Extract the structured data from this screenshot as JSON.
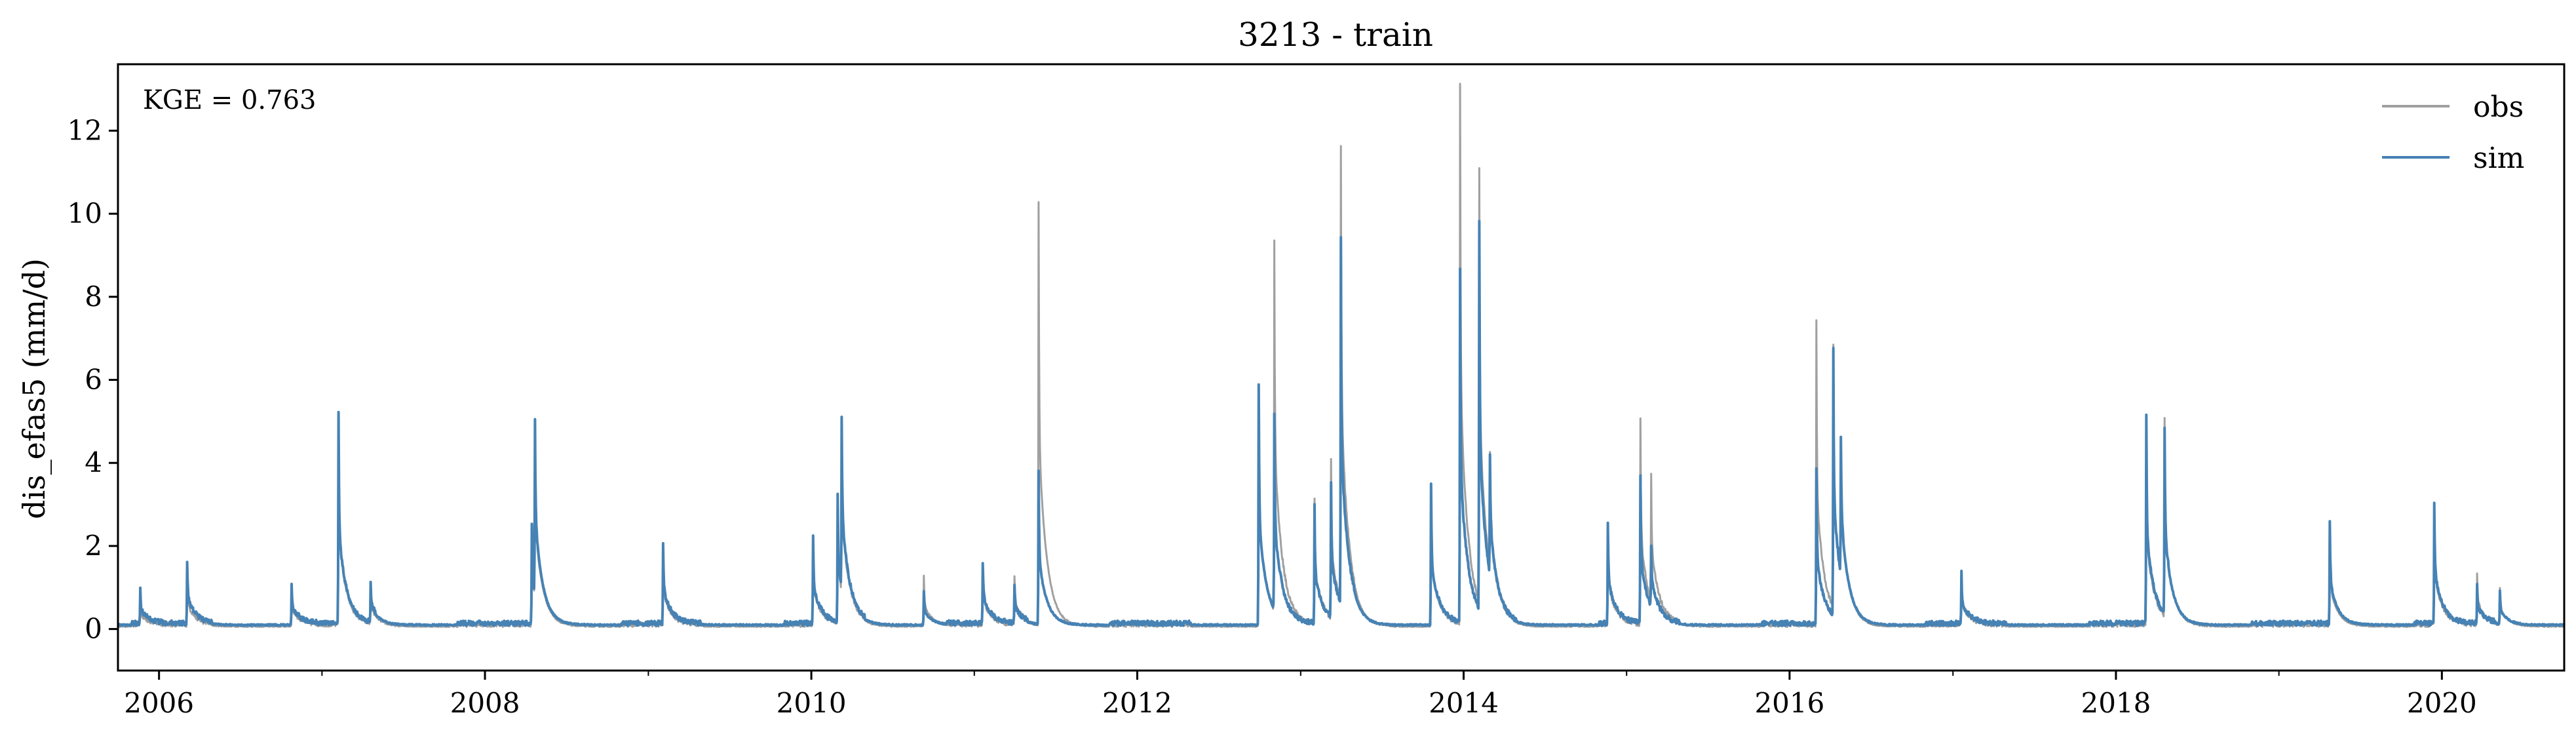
{
  "chart_data": {
    "type": "line",
    "title": "3213 - train",
    "xlabel": "",
    "ylabel": "dis_efas5 (mm/d)",
    "annotation": "KGE = 0.763",
    "xlim": [
      "2005-10-01",
      "2020-10-01"
    ],
    "ylim": [
      -1,
      13.6
    ],
    "x_ticks": [
      "2006",
      "2008",
      "2010",
      "2012",
      "2014",
      "2016",
      "2018",
      "2020"
    ],
    "y_ticks": [
      "0",
      "2",
      "4",
      "6",
      "8",
      "10",
      "12"
    ],
    "legend_position": "top-right",
    "grid": false,
    "series": [
      {
        "name": "obs",
        "color": "#a0a0a0",
        "base": 0.05,
        "events": [
          [
            "2005-11-20",
            0.6
          ],
          [
            "2006-03-05",
            1.2
          ],
          [
            "2006-10-25",
            0.9
          ],
          [
            "2007-02-07",
            5.0
          ],
          [
            "2007-04-20",
            0.9
          ],
          [
            "2008-04-15",
            2.3
          ],
          [
            "2008-04-22",
            4.0
          ],
          [
            "2009-02-03",
            1.8
          ],
          [
            "2010-01-05",
            2.0
          ],
          [
            "2010-03-01",
            3.0
          ],
          [
            "2010-03-10",
            4.0
          ],
          [
            "2010-09-10",
            1.2
          ],
          [
            "2011-01-20",
            1.4
          ],
          [
            "2011-04-01",
            1.2
          ],
          [
            "2011-05-25",
            10.2
          ],
          [
            "2012-09-29",
            5.7
          ],
          [
            "2012-11-03",
            8.9
          ],
          [
            "2013-02-01",
            3.0
          ],
          [
            "2013-03-10",
            3.8
          ],
          [
            "2013-04-01",
            11.0
          ],
          [
            "2013-10-20",
            3.4
          ],
          [
            "2013-12-24",
            13.0
          ],
          [
            "2014-02-05",
            10.4
          ],
          [
            "2014-03-01",
            2.8
          ],
          [
            "2014-11-20",
            2.3
          ],
          [
            "2015-02-01",
            4.9
          ],
          [
            "2015-02-25",
            3.0
          ],
          [
            "2016-03-01",
            7.3
          ],
          [
            "2016-04-08",
            6.3
          ],
          [
            "2016-04-25",
            3.2
          ],
          [
            "2017-01-20",
            1.2
          ],
          [
            "2018-03-10",
            4.7
          ],
          [
            "2018-04-20",
            4.7
          ],
          [
            "2019-04-25",
            2.2
          ],
          [
            "2019-12-15",
            2.8
          ],
          [
            "2020-03-20",
            1.2
          ],
          [
            "2020-05-10",
            0.9
          ]
        ]
      },
      {
        "name": "sim",
        "color": "#4682b4",
        "base": 0.08,
        "events": [
          [
            "2005-11-20",
            0.8
          ],
          [
            "2006-03-05",
            1.5
          ],
          [
            "2006-10-25",
            1.0
          ],
          [
            "2007-02-07",
            5.1
          ],
          [
            "2007-04-20",
            1.0
          ],
          [
            "2008-04-15",
            2.4
          ],
          [
            "2008-04-22",
            4.2
          ],
          [
            "2009-02-03",
            1.9
          ],
          [
            "2010-01-05",
            2.1
          ],
          [
            "2010-03-01",
            3.1
          ],
          [
            "2010-03-10",
            4.1
          ],
          [
            "2010-09-10",
            0.8
          ],
          [
            "2011-01-20",
            1.5
          ],
          [
            "2011-04-01",
            0.9
          ],
          [
            "2011-05-25",
            3.7
          ],
          [
            "2012-09-29",
            5.8
          ],
          [
            "2012-11-03",
            4.7
          ],
          [
            "2013-02-01",
            2.8
          ],
          [
            "2013-03-10",
            3.2
          ],
          [
            "2013-04-01",
            8.8
          ],
          [
            "2013-10-20",
            3.4
          ],
          [
            "2013-12-24",
            8.5
          ],
          [
            "2014-02-05",
            9.3
          ],
          [
            "2014-03-01",
            2.9
          ],
          [
            "2014-11-20",
            2.4
          ],
          [
            "2015-02-01",
            3.5
          ],
          [
            "2015-02-25",
            1.5
          ],
          [
            "2016-03-01",
            3.7
          ],
          [
            "2016-04-08",
            6.4
          ],
          [
            "2016-04-25",
            3.3
          ],
          [
            "2017-01-20",
            1.2
          ],
          [
            "2018-03-10",
            5.0
          ],
          [
            "2018-04-20",
            4.5
          ],
          [
            "2019-04-25",
            2.4
          ],
          [
            "2019-12-15",
            2.9
          ],
          [
            "2020-03-20",
            0.9
          ],
          [
            "2020-05-10",
            0.8
          ]
        ]
      }
    ]
  }
}
